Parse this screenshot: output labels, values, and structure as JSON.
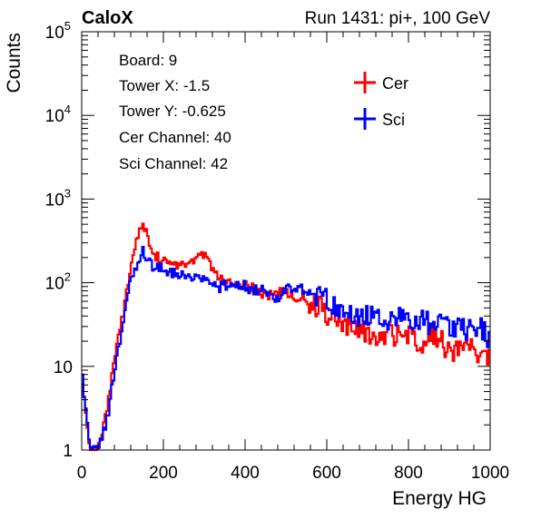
{
  "header": {
    "left_label": "CaloX",
    "right_label": "Run 1431: pi+, 100 GeV"
  },
  "info_box": {
    "lines": [
      "Board: 9",
      "Tower X: -1.5",
      "Tower Y: -0.625",
      "Cer Channel: 40",
      "Sci Channel: 42"
    ]
  },
  "chart_data": {
    "type": "line",
    "style": "step-histogram",
    "xlabel": "Energy HG",
    "ylabel": "Counts",
    "xlim": [
      0,
      1000
    ],
    "ylim": [
      1,
      100000
    ],
    "yscale": "log",
    "grid": false,
    "legend_position": "top-right",
    "x_ticks": [
      "0",
      "200",
      "400",
      "600",
      "800",
      "1000"
    ],
    "y_ticks": [
      "1",
      "10",
      "10^2",
      "10^3",
      "10^4",
      "10^5"
    ],
    "x": [
      0,
      20,
      40,
      60,
      80,
      100,
      120,
      140,
      150,
      160,
      180,
      200,
      220,
      240,
      260,
      280,
      300,
      320,
      340,
      360,
      380,
      400,
      420,
      440,
      460,
      480,
      500,
      520,
      540,
      560,
      580,
      600,
      620,
      640,
      660,
      680,
      700,
      720,
      740,
      760,
      780,
      800,
      820,
      840,
      860,
      880,
      900,
      920,
      940,
      960,
      980,
      1000
    ],
    "series": [
      {
        "name": "Cer",
        "color": "#ff0000",
        "values": [
          9,
          1,
          1,
          3,
          12,
          40,
          150,
          400,
          520,
          380,
          220,
          180,
          190,
          160,
          150,
          200,
          230,
          150,
          110,
          105,
          90,
          95,
          85,
          75,
          70,
          75,
          80,
          65,
          75,
          60,
          55,
          45,
          35,
          32,
          30,
          28,
          25,
          22,
          26,
          25,
          24,
          24,
          22,
          20,
          25,
          22,
          15,
          18,
          20,
          17,
          14,
          12
        ]
      },
      {
        "name": "Sci",
        "color": "#0000ff",
        "values": [
          9,
          1,
          1,
          2,
          8,
          30,
          110,
          200,
          250,
          200,
          150,
          145,
          135,
          130,
          110,
          110,
          115,
          95,
          90,
          95,
          90,
          95,
          80,
          90,
          75,
          65,
          90,
          75,
          85,
          75,
          70,
          70,
          55,
          42,
          45,
          42,
          42,
          38,
          38,
          40,
          40,
          36,
          34,
          38,
          32,
          34,
          32,
          30,
          28,
          28,
          30,
          20
        ]
      }
    ]
  }
}
